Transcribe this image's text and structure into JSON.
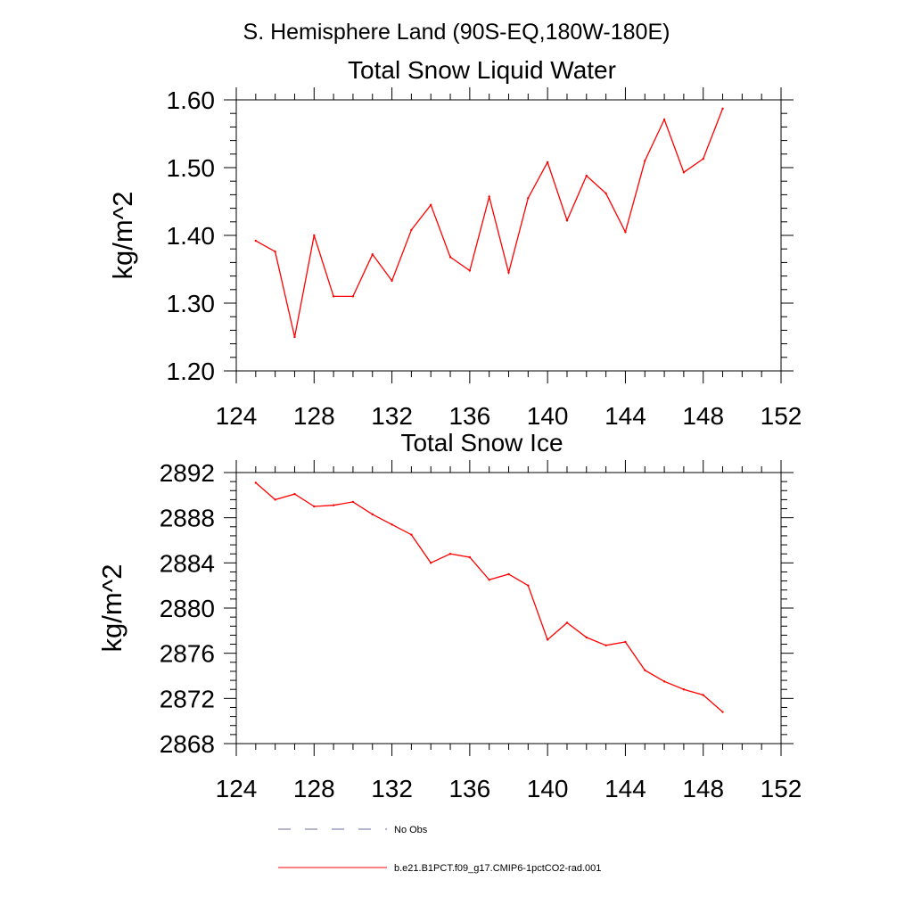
{
  "page_title": "S. Hemisphere Land (90S-EQ,180W-180E)",
  "colors": {
    "series": "#ff0000",
    "obs": "#6a6a9a",
    "axis": "#000000"
  },
  "legend": {
    "obs_label": "No Obs",
    "model_label": "b.e21.B1PCT.f09_g17.CMIP6-1pctCO2-rad.001"
  },
  "chart_data": [
    {
      "type": "line",
      "title": "Total Snow Liquid Water",
      "xlabel": "",
      "ylabel": "kg/m^2",
      "xlim": [
        124,
        152
      ],
      "ylim": [
        1.2,
        1.6
      ],
      "xticks": [
        "124",
        "128",
        "132",
        "136",
        "140",
        "144",
        "148",
        "152"
      ],
      "yticks": [
        "1.20",
        "1.30",
        "1.40",
        "1.50",
        "1.60"
      ],
      "grid": false,
      "series": [
        {
          "name": "b.e21.B1PCT.f09_g17.CMIP6-1pctCO2-rad.001",
          "x": [
            125,
            126,
            127,
            128,
            129,
            130,
            131,
            132,
            133,
            134,
            135,
            136,
            137,
            138,
            139,
            140,
            141,
            142,
            143,
            144,
            145,
            146,
            147,
            148,
            149
          ],
          "y": [
            1.392,
            1.376,
            1.25,
            1.4,
            1.31,
            1.31,
            1.372,
            1.333,
            1.408,
            1.445,
            1.368,
            1.348,
            1.457,
            1.345,
            1.455,
            1.508,
            1.422,
            1.488,
            1.462,
            1.405,
            1.51,
            1.571,
            1.493,
            1.513,
            1.587
          ]
        }
      ]
    },
    {
      "type": "line",
      "title": "Total Snow Ice",
      "xlabel": "",
      "ylabel": "kg/m^2",
      "xlim": [
        124,
        152
      ],
      "ylim": [
        2868,
        2892
      ],
      "xticks": [
        "124",
        "128",
        "132",
        "136",
        "140",
        "144",
        "148",
        "152"
      ],
      "yticks": [
        "2868",
        "2872",
        "2876",
        "2880",
        "2884",
        "2888",
        "2892"
      ],
      "grid": false,
      "series": [
        {
          "name": "b.e21.B1PCT.f09_g17.CMIP6-1pctCO2-rad.001",
          "x": [
            125,
            126,
            127,
            128,
            129,
            130,
            131,
            132,
            133,
            134,
            135,
            136,
            137,
            138,
            139,
            140,
            141,
            142,
            143,
            144,
            145,
            146,
            147,
            148,
            149
          ],
          "y": [
            2891.1,
            2889.6,
            2890.1,
            2889.0,
            2889.1,
            2889.4,
            2888.3,
            2887.4,
            2886.5,
            2884.0,
            2884.8,
            2884.5,
            2882.5,
            2883.0,
            2882.0,
            2877.2,
            2878.7,
            2877.4,
            2876.7,
            2877.0,
            2874.5,
            2873.5,
            2872.8,
            2872.3,
            2870.8
          ]
        }
      ]
    }
  ]
}
